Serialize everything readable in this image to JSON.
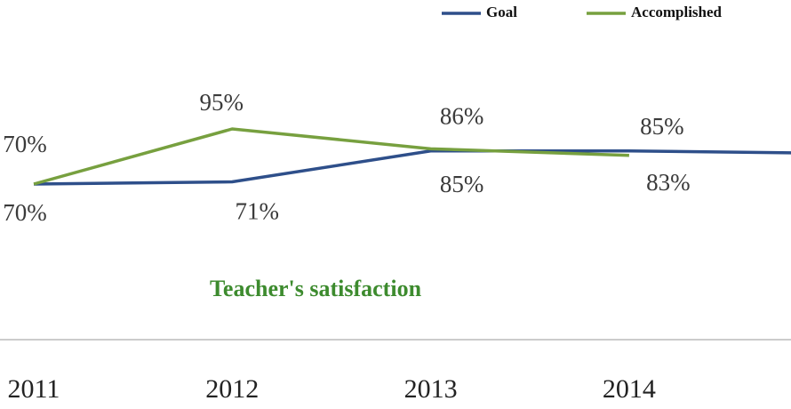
{
  "chart_data": {
    "type": "line",
    "title": "Teacher's satisfaction",
    "categories": [
      "2011",
      "2012",
      "2013",
      "2014",
      null
    ],
    "series": [
      {
        "name": "Goal",
        "color": "#2e4f8a",
        "values": [
          70,
          71,
          85,
          85,
          84
        ],
        "value_labels": [
          "70%",
          "71%",
          "85%",
          "85%",
          null
        ]
      },
      {
        "name": "Accomplished",
        "color": "#77a03f",
        "values": [
          70,
          95,
          86,
          83,
          null
        ],
        "value_labels": [
          "70%",
          "95%",
          "86%",
          "83%",
          null
        ]
      }
    ],
    "legend": "top-right"
  }
}
